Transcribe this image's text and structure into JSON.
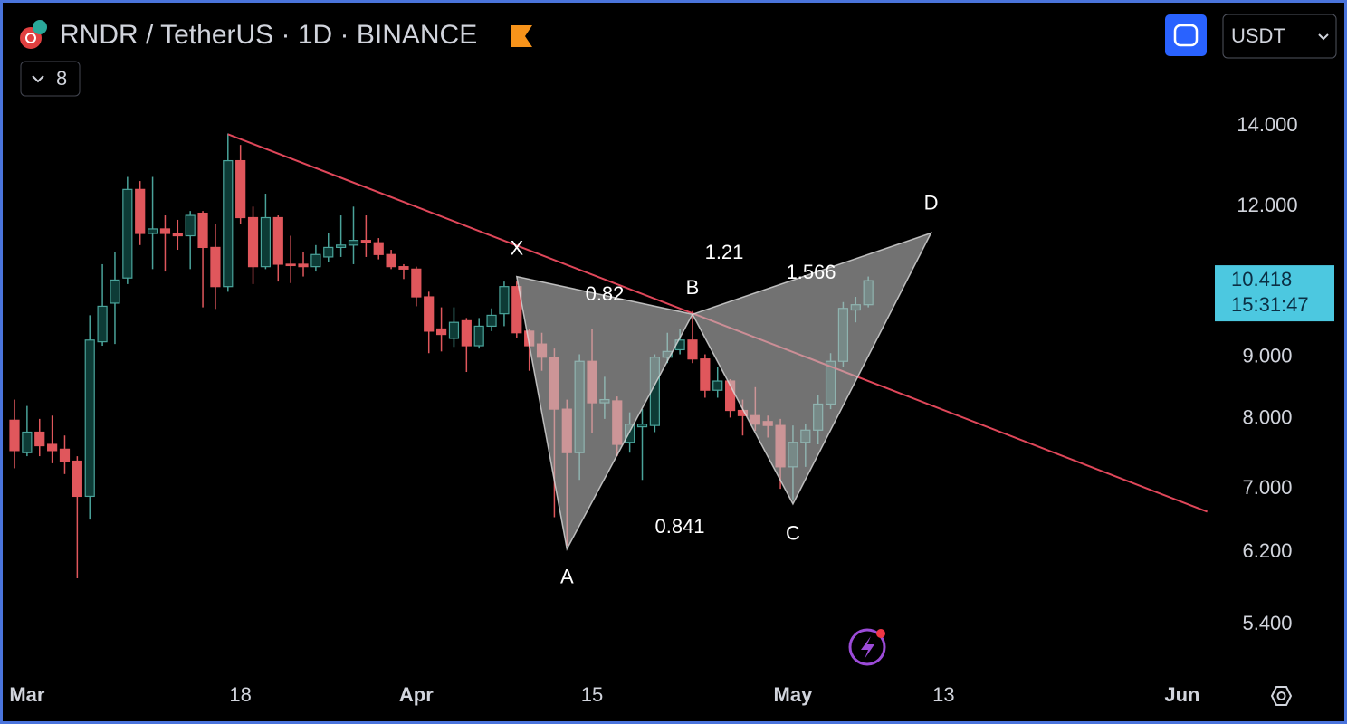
{
  "header": {
    "symbol_title": "RNDR / TetherUS · 1D · BINANCE",
    "indicator_count": 8,
    "currency": "USDT"
  },
  "chart_data": {
    "type": "candlestick",
    "log_scale": true,
    "up_color": "#4aa39a",
    "down_color": "#e0575c",
    "categories": [
      null,
      "Mar",
      null,
      null,
      null,
      null,
      null,
      null,
      null,
      null,
      null,
      null,
      null,
      null,
      null,
      null,
      null,
      null,
      "18",
      null,
      null,
      null,
      null,
      null,
      null,
      null,
      null,
      null,
      null,
      null,
      null,
      null,
      "Apr",
      null,
      null,
      null,
      null,
      null,
      null,
      null,
      null,
      null,
      null,
      null,
      null,
      null,
      "15",
      null,
      null,
      null,
      null,
      null,
      null,
      null,
      null,
      null,
      null,
      null,
      null,
      null,
      null,
      null,
      "May",
      null,
      null,
      null,
      null,
      null,
      null,
      null,
      null,
      null,
      null,
      null,
      "13",
      null,
      null,
      null,
      null,
      null,
      null,
      null,
      null,
      null,
      null,
      null,
      null,
      null,
      null,
      null,
      null,
      null,
      null,
      "Jun",
      null,
      null
    ],
    "open": [
      7.98,
      7.5,
      7.8,
      7.62,
      7.55,
      7.38,
      6.9,
      9.27,
      9.98,
      10.47,
      12.4,
      11.4,
      11.5,
      11.4,
      11.35,
      11.85,
      11.1,
      10.3,
      13.1,
      11.75,
      10.7,
      11.75,
      10.75,
      10.75,
      10.7,
      10.9,
      11.1,
      11.15,
      11.25,
      11.2,
      10.95,
      10.7,
      10.65,
      10.1,
      9.5,
      9.33,
      9.65,
      9.2,
      9.55,
      9.78,
      10.3,
      9.46,
      9.23,
      9.0,
      8.15,
      7.5,
      8.93,
      8.25,
      8.28,
      7.65,
      7.88,
      7.9,
      9.0,
      9.13,
      9.3,
      8.97,
      8.45,
      8.6,
      8.13,
      8.05,
      7.96,
      7.9,
      7.3,
      7.65,
      7.83,
      8.23,
      8.93,
      9.85,
      9.95,
      null,
      null,
      null,
      null,
      null,
      null,
      null,
      null,
      null,
      null,
      null,
      null,
      null,
      null,
      null,
      null,
      null,
      null,
      null,
      null,
      null,
      null,
      null,
      null,
      null,
      null,
      null
    ],
    "high": [
      8.3,
      8.2,
      8.0,
      8.05,
      7.75,
      7.45,
      9.75,
      10.75,
      11.0,
      12.7,
      12.6,
      12.7,
      11.8,
      11.7,
      11.9,
      11.9,
      11.6,
      13.8,
      13.5,
      12.0,
      12.3,
      11.8,
      11.35,
      11.0,
      11.15,
      11.4,
      11.8,
      12.0,
      11.8,
      11.3,
      11.05,
      10.75,
      10.7,
      10.2,
      9.9,
      9.9,
      9.7,
      9.7,
      9.88,
      10.4,
      10.4,
      9.5,
      9.43,
      9.15,
      8.3,
      9.05,
      9.5,
      8.67,
      8.35,
      8.1,
      8.15,
      9.05,
      9.43,
      9.5,
      9.83,
      9.05,
      8.83,
      8.63,
      8.3,
      8.5,
      8.05,
      8.0,
      7.9,
      7.93,
      8.37,
      9.07,
      10.0,
      10.1,
      10.5,
      null,
      null,
      null,
      null,
      null,
      null,
      null,
      null,
      null,
      null,
      null,
      null,
      null,
      null,
      null,
      null,
      null,
      null,
      null,
      null,
      null,
      null,
      null,
      null,
      null,
      null,
      null
    ],
    "low": [
      7.28,
      7.45,
      7.45,
      7.35,
      7.2,
      5.9,
      6.6,
      9.2,
      9.23,
      10.35,
      11.15,
      10.65,
      10.6,
      11.05,
      10.65,
      9.9,
      9.87,
      10.2,
      11.6,
      10.35,
      10.65,
      10.4,
      10.37,
      10.5,
      10.6,
      10.8,
      10.9,
      10.75,
      10.9,
      10.85,
      10.65,
      10.45,
      9.92,
      9.07,
      9.1,
      9.18,
      8.75,
      9.15,
      9.46,
      9.55,
      9.33,
      8.77,
      8.77,
      6.63,
      6.28,
      7.12,
      7.78,
      8.0,
      7.45,
      7.5,
      7.12,
      7.8,
      8.9,
      9.05,
      8.9,
      8.33,
      8.33,
      8.02,
      7.75,
      7.82,
      7.72,
      7.0,
      6.86,
      7.3,
      7.62,
      8.15,
      8.83,
      9.62,
      9.9,
      null,
      null,
      null,
      null,
      null,
      null,
      null,
      null,
      null,
      null,
      null,
      null,
      null,
      null,
      null,
      null,
      null,
      null,
      null,
      null,
      null,
      null,
      null,
      null,
      null,
      null,
      null
    ],
    "close": [
      7.53,
      7.8,
      7.6,
      7.53,
      7.38,
      6.9,
      9.3,
      9.92,
      10.43,
      12.4,
      11.4,
      11.5,
      11.4,
      11.35,
      11.8,
      11.1,
      10.3,
      13.1,
      11.75,
      10.7,
      11.75,
      10.75,
      10.73,
      10.7,
      10.95,
      11.1,
      11.15,
      11.25,
      11.2,
      10.95,
      10.7,
      10.65,
      10.1,
      9.46,
      9.4,
      9.62,
      9.2,
      9.55,
      9.75,
      10.3,
      9.43,
      9.2,
      9.0,
      8.15,
      7.5,
      8.93,
      8.25,
      8.3,
      7.62,
      7.92,
      7.92,
      9.0,
      9.1,
      9.3,
      8.97,
      8.45,
      8.6,
      8.13,
      8.05,
      7.92,
      7.9,
      7.3,
      7.65,
      7.83,
      8.23,
      8.93,
      9.88,
      9.95,
      10.418,
      null,
      null,
      null,
      null,
      null,
      null,
      null,
      null,
      null,
      null,
      null,
      null,
      null,
      null,
      null,
      null,
      null,
      null,
      null,
      null,
      null,
      null,
      null,
      null,
      null,
      null,
      null
    ],
    "ylim": [
      4.87,
      14.98
    ],
    "yticks": [
      {
        "value": 14,
        "label": "14.000"
      },
      {
        "value": 12,
        "label": "12.000"
      },
      {
        "value": 9,
        "label": "9.000"
      },
      {
        "value": 8,
        "label": "8.000"
      },
      {
        "value": 7,
        "label": "7.000"
      },
      {
        "value": 6.2,
        "label": "6.200"
      },
      {
        "value": 5.4,
        "label": "5.400"
      }
    ],
    "countdown": "15:31:47",
    "trendline": {
      "color": "#e0475a",
      "points": [
        {
          "x": 17,
          "value": 13.78
        },
        {
          "x": 95,
          "value": 6.7
        }
      ]
    },
    "pattern": [
      {
        "label": "X",
        "x": 40,
        "value": 10.5
      },
      {
        "label": "A",
        "x": 44,
        "value": 6.24
      },
      {
        "label": "B",
        "x": 54,
        "value": 9.77
      },
      {
        "label": "C",
        "x": 62,
        "value": 6.8
      },
      {
        "label": "D",
        "x": 73,
        "value": 11.41
      }
    ],
    "ratios": [
      "0.82",
      "1.21",
      "0.841",
      "1.566"
    ]
  }
}
